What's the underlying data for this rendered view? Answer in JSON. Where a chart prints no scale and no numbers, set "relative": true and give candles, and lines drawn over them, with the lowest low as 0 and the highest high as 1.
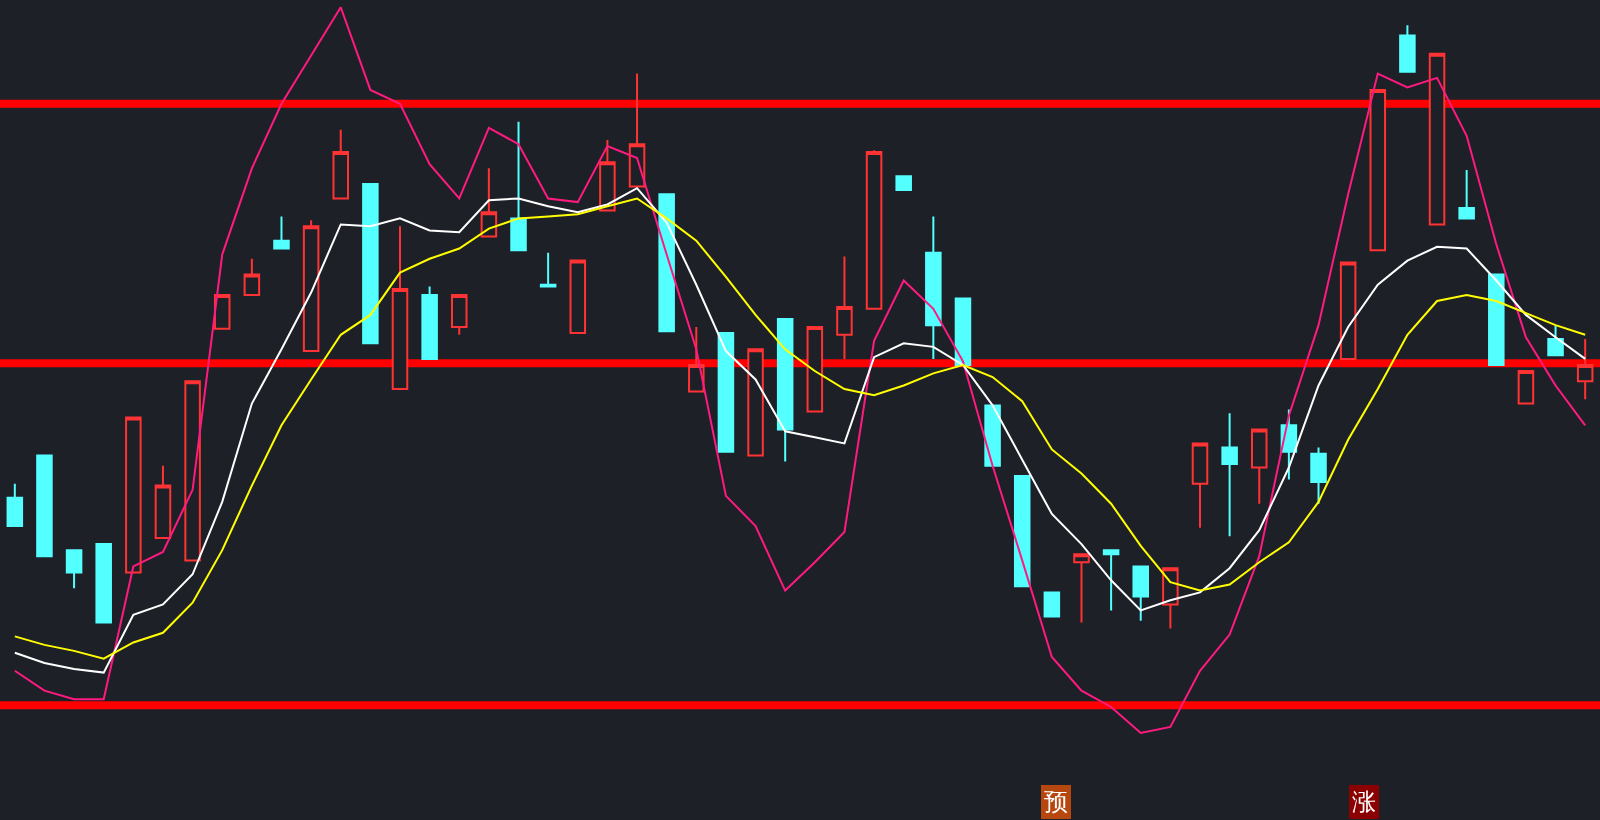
{
  "chart_data": {
    "type": "candlestick",
    "relative": true,
    "categories": [
      null,
      null,
      null,
      null,
      null,
      null,
      null,
      null,
      null,
      null,
      null,
      null,
      null,
      null,
      null,
      null,
      null,
      null,
      null,
      null,
      null,
      null,
      null,
      null,
      null,
      null,
      null,
      null,
      null,
      null,
      null,
      null,
      null,
      null,
      null,
      null,
      null,
      null,
      null,
      null,
      null,
      null,
      null,
      null,
      null,
      null,
      null,
      null,
      null,
      null,
      null,
      null,
      null,
      null
    ],
    "ohlc": [
      [
        0.217,
        0.24,
        0.17,
        0.17
      ],
      [
        0.287,
        0.287,
        0.12,
        0.12
      ],
      [
        0.13,
        0.13,
        0.067,
        0.093
      ],
      [
        0.14,
        0.14,
        0.01,
        0.01
      ],
      [
        0.093,
        0.35,
        0.093,
        0.35
      ],
      [
        0.15,
        0.27,
        0.15,
        0.237
      ],
      [
        0.113,
        0.41,
        0.113,
        0.41
      ],
      [
        0.497,
        0.553,
        0.497,
        0.553
      ],
      [
        0.553,
        0.613,
        0.553,
        0.587
      ],
      [
        0.643,
        0.683,
        0.63,
        0.63
      ],
      [
        0.46,
        0.677,
        0.46,
        0.667
      ],
      [
        0.713,
        0.827,
        0.713,
        0.79
      ],
      [
        0.737,
        0.737,
        0.473,
        0.473
      ],
      [
        0.397,
        0.667,
        0.397,
        0.563
      ],
      [
        0.553,
        0.567,
        0.447,
        0.447
      ],
      [
        0.5,
        0.553,
        0.487,
        0.553
      ],
      [
        0.65,
        0.763,
        0.65,
        0.69
      ],
      [
        0.68,
        0.84,
        0.627,
        0.627
      ],
      [
        0.57,
        0.623,
        0.567,
        0.567
      ],
      [
        0.49,
        0.61,
        0.49,
        0.61
      ],
      [
        0.693,
        0.81,
        0.693,
        0.773
      ],
      [
        0.733,
        0.92,
        0.733,
        0.803
      ],
      [
        0.72,
        0.72,
        0.493,
        0.493
      ],
      [
        0.393,
        0.5,
        0.393,
        0.437
      ],
      [
        0.49,
        0.49,
        0.293,
        0.293
      ],
      [
        0.287,
        0.463,
        0.287,
        0.463
      ],
      [
        0.513,
        0.513,
        0.277,
        0.33
      ],
      [
        0.36,
        0.5,
        0.36,
        0.5
      ],
      [
        0.487,
        0.617,
        0.447,
        0.533
      ],
      [
        0.53,
        0.793,
        0.53,
        0.79
      ],
      [
        0.75,
        0.75,
        0.727,
        0.727
      ],
      [
        0.623,
        0.683,
        0.447,
        0.503
      ],
      [
        0.547,
        0.547,
        0.437,
        0.437
      ],
      [
        0.37,
        0.37,
        0.27,
        0.27
      ],
      [
        0.253,
        0.253,
        0.07,
        0.07
      ],
      [
        0.06,
        0.06,
        0.02,
        0.02
      ],
      [
        0.11,
        0.123,
        0.01,
        0.123
      ],
      [
        0.13,
        0.13,
        0.03,
        0.123
      ],
      [
        0.103,
        0.103,
        0.013,
        0.053
      ],
      [
        0.04,
        0.1,
        0.0,
        0.1
      ],
      [
        0.24,
        0.307,
        0.167,
        0.307
      ],
      [
        0.3,
        0.357,
        0.153,
        0.273
      ],
      [
        0.267,
        0.33,
        0.207,
        0.33
      ],
      [
        0.337,
        0.363,
        0.247,
        0.293
      ],
      [
        0.29,
        0.3,
        0.207,
        0.243
      ],
      [
        0.447,
        0.607,
        0.447,
        0.607
      ],
      [
        0.627,
        0.893,
        0.627,
        0.893
      ],
      [
        0.983,
        1.0,
        0.923,
        0.923
      ],
      [
        0.67,
        0.953,
        0.67,
        0.953
      ],
      [
        0.697,
        0.76,
        0.68,
        0.68
      ],
      [
        0.587,
        0.587,
        0.437,
        0.437
      ],
      [
        0.373,
        0.427,
        0.373,
        0.427
      ],
      [
        0.48,
        0.503,
        0.453,
        0.453
      ],
      [
        0.41,
        0.48,
        0.38,
        0.437
      ]
    ],
    "colors": [
      "#54ffff",
      "#54ffff",
      "#54ffff",
      "#54ffff",
      "#ff3333",
      "#ff3333",
      "#ff3333",
      "#ff3333",
      "#ff3333",
      "#54ffff",
      "#ff3333",
      "#ff3333",
      "#54ffff",
      "#ff3333",
      "#54ffff",
      "#ff3333",
      "#ff3333",
      "#54ffff",
      "#54ffff",
      "#ff3333",
      "#ff3333",
      "#ff3333",
      "#54ffff",
      "#ff3333",
      "#54ffff",
      "#ff3333",
      "#54ffff",
      "#ff3333",
      "#ff3333",
      "#ff3333",
      "#54ffff",
      "#54ffff",
      "#54ffff",
      "#54ffff",
      "#54ffff",
      "#54ffff",
      "#ff3333",
      "#54ffff",
      "#54ffff",
      "#ff3333",
      "#ff3333",
      "#54ffff",
      "#ff3333",
      "#54ffff",
      "#54ffff",
      "#ff3333",
      "#ff3333",
      "#54ffff",
      "#ff3333",
      "#54ffff",
      "#54ffff",
      "#ff3333",
      "#54ffff",
      "#ff3333"
    ],
    "series": [
      {
        "type": "line",
        "color": "#ff1a80",
        "values": [
          -0.07,
          -0.103,
          -0.117,
          -0.117,
          0.103,
          0.127,
          0.23,
          0.62,
          0.763,
          0.87,
          0.95,
          1.03,
          0.893,
          0.87,
          0.77,
          0.713,
          0.83,
          0.803,
          0.713,
          0.707,
          0.8,
          0.78,
          0.62,
          0.463,
          0.22,
          0.17,
          0.063,
          0.11,
          0.16,
          0.477,
          0.577,
          0.53,
          0.443,
          0.27,
          0.113,
          -0.047,
          -0.103,
          -0.13,
          -0.173,
          -0.163,
          -0.07,
          -0.01,
          0.12,
          0.353,
          0.503,
          0.72,
          0.92,
          0.897,
          0.913,
          0.817,
          0.637,
          0.483,
          0.403,
          0.337
        ]
      },
      {
        "type": "line",
        "color": "#ffffff",
        "values": [
          -0.04,
          -0.057,
          -0.067,
          -0.073,
          0.023,
          0.04,
          0.09,
          0.21,
          0.373,
          0.463,
          0.557,
          0.67,
          0.667,
          0.68,
          0.66,
          0.657,
          0.71,
          0.713,
          0.7,
          0.69,
          0.703,
          0.73,
          0.673,
          0.57,
          0.46,
          0.413,
          0.327,
          0.317,
          0.307,
          0.45,
          0.473,
          0.467,
          0.437,
          0.37,
          0.28,
          0.19,
          0.14,
          0.08,
          0.03,
          0.047,
          0.06,
          0.1,
          0.163,
          0.267,
          0.403,
          0.5,
          0.57,
          0.61,
          0.633,
          0.63,
          0.577,
          0.52,
          0.483,
          0.447
        ]
      },
      {
        "type": "line",
        "color": "#ffff00",
        "values": [
          -0.013,
          -0.027,
          -0.037,
          -0.05,
          -0.023,
          -0.007,
          0.043,
          0.13,
          0.237,
          0.337,
          0.413,
          0.487,
          0.52,
          0.59,
          0.613,
          0.63,
          0.663,
          0.68,
          0.683,
          0.687,
          0.7,
          0.713,
          0.68,
          0.643,
          0.583,
          0.52,
          0.463,
          0.427,
          0.397,
          0.387,
          0.403,
          0.423,
          0.437,
          0.417,
          0.377,
          0.297,
          0.257,
          0.207,
          0.137,
          0.077,
          0.063,
          0.073,
          0.11,
          0.143,
          0.21,
          0.313,
          0.397,
          0.487,
          0.543,
          0.553,
          0.543,
          0.523,
          0.503,
          0.487
        ]
      }
    ],
    "ref_lines": [
      {
        "axis": "y",
        "value": 0.87,
        "color": "#ff0000"
      },
      {
        "axis": "y",
        "value": 0.44,
        "color": "#ff0000"
      },
      {
        "axis": "y",
        "value": -0.127,
        "color": "#ff0000"
      }
    ],
    "annotations": [
      "预",
      "涨"
    ]
  }
}
